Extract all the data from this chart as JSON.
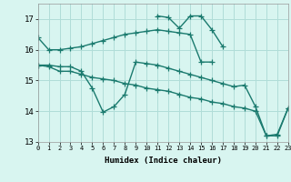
{
  "x": [
    0,
    1,
    2,
    3,
    4,
    5,
    6,
    7,
    8,
    9,
    10,
    11,
    12,
    13,
    14,
    15,
    16,
    17,
    18,
    19,
    20,
    21,
    22,
    23
  ],
  "line1_y": [
    16.4,
    16.0,
    16.0,
    16.05,
    16.1,
    16.2,
    16.3,
    16.4,
    16.5,
    16.55,
    16.6,
    16.65,
    16.6,
    16.55,
    16.5,
    15.6,
    15.6,
    null,
    null,
    null,
    null,
    null,
    null,
    null
  ],
  "line2_y": [
    null,
    null,
    null,
    null,
    null,
    null,
    null,
    null,
    null,
    null,
    null,
    17.1,
    17.05,
    16.7,
    17.1,
    17.1,
    16.65,
    16.1,
    null,
    null,
    null,
    null,
    null,
    null
  ],
  "line3_y": [
    15.5,
    15.5,
    15.45,
    15.45,
    15.3,
    14.75,
    13.97,
    14.15,
    14.55,
    15.6,
    15.55,
    15.5,
    15.4,
    15.3,
    15.2,
    15.1,
    15.0,
    14.9,
    14.8,
    14.85,
    14.15,
    13.2,
    13.2,
    14.1
  ],
  "line4_y": [
    15.5,
    15.45,
    15.3,
    15.3,
    15.2,
    15.1,
    15.05,
    15.0,
    14.9,
    14.85,
    14.75,
    14.7,
    14.65,
    14.55,
    14.45,
    14.4,
    14.3,
    14.25,
    14.15,
    14.1,
    14.0,
    13.2,
    13.25,
    14.1
  ],
  "line_color": "#1a7a6e",
  "bg_color": "#d8f5f0",
  "grid_color": "#b0ddd8",
  "xlabel": "Humidex (Indice chaleur)",
  "ylim": [
    13,
    17.5
  ],
  "xlim": [
    0,
    23
  ],
  "yticks": [
    13,
    14,
    15,
    16,
    17
  ],
  "xticks": [
    0,
    1,
    2,
    3,
    4,
    5,
    6,
    7,
    8,
    9,
    10,
    11,
    12,
    13,
    14,
    15,
    16,
    17,
    18,
    19,
    20,
    21,
    22,
    23
  ]
}
